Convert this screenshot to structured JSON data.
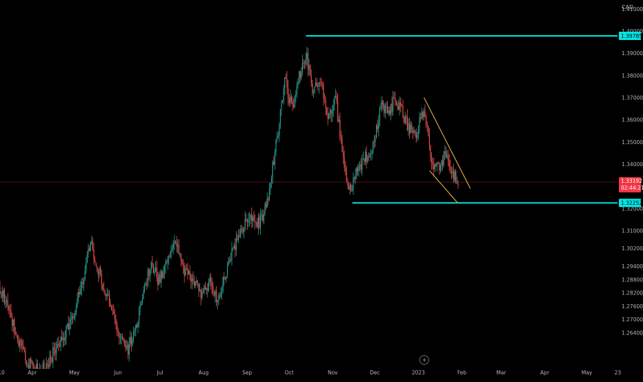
{
  "chart_data": {
    "type": "candlestick",
    "currency_label": "CAD",
    "ylim": [
      1.243,
      1.414
    ],
    "y_ticks": [
      "1.41000",
      "1.40000",
      "1.39000",
      "1.38000",
      "1.37000",
      "1.36000",
      "1.35000",
      "1.34000",
      "1.32000",
      "1.31000",
      "1.30200",
      "1.29400",
      "1.28800",
      "1.28200",
      "1.27600",
      "1.27000",
      "1.26400"
    ],
    "y_tick_values": [
      1.41,
      1.4,
      1.39,
      1.38,
      1.37,
      1.36,
      1.35,
      1.34,
      1.32,
      1.31,
      1.302,
      1.294,
      1.288,
      1.282,
      1.276,
      1.27,
      1.264
    ],
    "x_ticks": [
      "10",
      "Apr",
      "May",
      "Jun",
      "Jul",
      "Aug",
      "Sep",
      "Oct",
      "Nov",
      "Dec",
      "2023",
      "Feb",
      "Mar",
      "Apr",
      "May",
      "23"
    ],
    "x_tick_dates": [
      "2022-03-10",
      "2022-04-01",
      "2022-05-01",
      "2022-06-01",
      "2022-07-01",
      "2022-08-01",
      "2022-09-01",
      "2022-10-01",
      "2022-11-01",
      "2022-12-01",
      "2023-01-01",
      "2023-02-01",
      "2023-03-01",
      "2023-04-01",
      "2023-05-01",
      "2023-05-23"
    ],
    "x_range": [
      "2022-03-09",
      "2023-06-10"
    ],
    "current_price": {
      "value": 1.33192,
      "label": "1.33192",
      "countdown": "02:44:21",
      "color": "#f23645"
    },
    "levels": [
      {
        "name": "resistance",
        "value": 1.39785,
        "label": "1.39785",
        "start": "2022-10-13",
        "color": "#00e5e5"
      },
      {
        "name": "support",
        "value": 1.32252,
        "label": "1.32252",
        "start": "2022-11-15",
        "color": "#00e5e5"
      }
    ],
    "channel": {
      "color": "#d9a64a",
      "upper": [
        [
          "2023-01-05",
          1.37
        ],
        [
          "2023-02-07",
          1.329
        ]
      ],
      "lower": [
        [
          "2023-01-09",
          1.337
        ],
        [
          "2023-01-29",
          1.3225
        ]
      ]
    },
    "price_path": [
      [
        "2022-03-09",
        1.284
      ],
      [
        "2022-03-14",
        1.276
      ],
      [
        "2022-03-20",
        1.265
      ],
      [
        "2022-03-27",
        1.252
      ],
      [
        "2022-04-03",
        1.247
      ],
      [
        "2022-04-10",
        1.248
      ],
      [
        "2022-04-17",
        1.256
      ],
      [
        "2022-04-24",
        1.263
      ],
      [
        "2022-05-01",
        1.274
      ],
      [
        "2022-05-08",
        1.29
      ],
      [
        "2022-05-12",
        1.305
      ],
      [
        "2022-05-17",
        1.295
      ],
      [
        "2022-05-22",
        1.284
      ],
      [
        "2022-05-27",
        1.276
      ],
      [
        "2022-06-02",
        1.262
      ],
      [
        "2022-06-08",
        1.256
      ],
      [
        "2022-06-15",
        1.27
      ],
      [
        "2022-06-20",
        1.285
      ],
      [
        "2022-06-25",
        1.295
      ],
      [
        "2022-06-30",
        1.287
      ],
      [
        "2022-07-05",
        1.295
      ],
      [
        "2022-07-12",
        1.305
      ],
      [
        "2022-07-18",
        1.293
      ],
      [
        "2022-07-25",
        1.287
      ],
      [
        "2022-07-31",
        1.281
      ],
      [
        "2022-08-05",
        1.287
      ],
      [
        "2022-08-11",
        1.279
      ],
      [
        "2022-08-17",
        1.292
      ],
      [
        "2022-08-22",
        1.302
      ],
      [
        "2022-08-28",
        1.309
      ],
      [
        "2022-09-02",
        1.318
      ],
      [
        "2022-09-07",
        1.312
      ],
      [
        "2022-09-13",
        1.317
      ],
      [
        "2022-09-18",
        1.333
      ],
      [
        "2022-09-23",
        1.355
      ],
      [
        "2022-09-28",
        1.379
      ],
      [
        "2022-10-03",
        1.364
      ],
      [
        "2022-10-08",
        1.379
      ],
      [
        "2022-10-13",
        1.39
      ],
      [
        "2022-10-18",
        1.373
      ],
      [
        "2022-10-24",
        1.377
      ],
      [
        "2022-10-29",
        1.36
      ],
      [
        "2022-11-03",
        1.37
      ],
      [
        "2022-11-08",
        1.344
      ],
      [
        "2022-11-12",
        1.326
      ],
      [
        "2022-11-17",
        1.334
      ],
      [
        "2022-11-22",
        1.342
      ],
      [
        "2022-11-27",
        1.344
      ],
      [
        "2022-12-02",
        1.356
      ],
      [
        "2022-12-06",
        1.366
      ],
      [
        "2022-12-11",
        1.364
      ],
      [
        "2022-12-16",
        1.37
      ],
      [
        "2022-12-21",
        1.362
      ],
      [
        "2022-12-26",
        1.356
      ],
      [
        "2022-12-31",
        1.354
      ],
      [
        "2023-01-05",
        1.366
      ],
      [
        "2023-01-10",
        1.342
      ],
      [
        "2023-01-15",
        1.338
      ],
      [
        "2023-01-20",
        1.344
      ],
      [
        "2023-01-25",
        1.335
      ],
      [
        "2023-01-30",
        1.332
      ]
    ]
  },
  "icons": {
    "lightning": "lightning-icon"
  }
}
